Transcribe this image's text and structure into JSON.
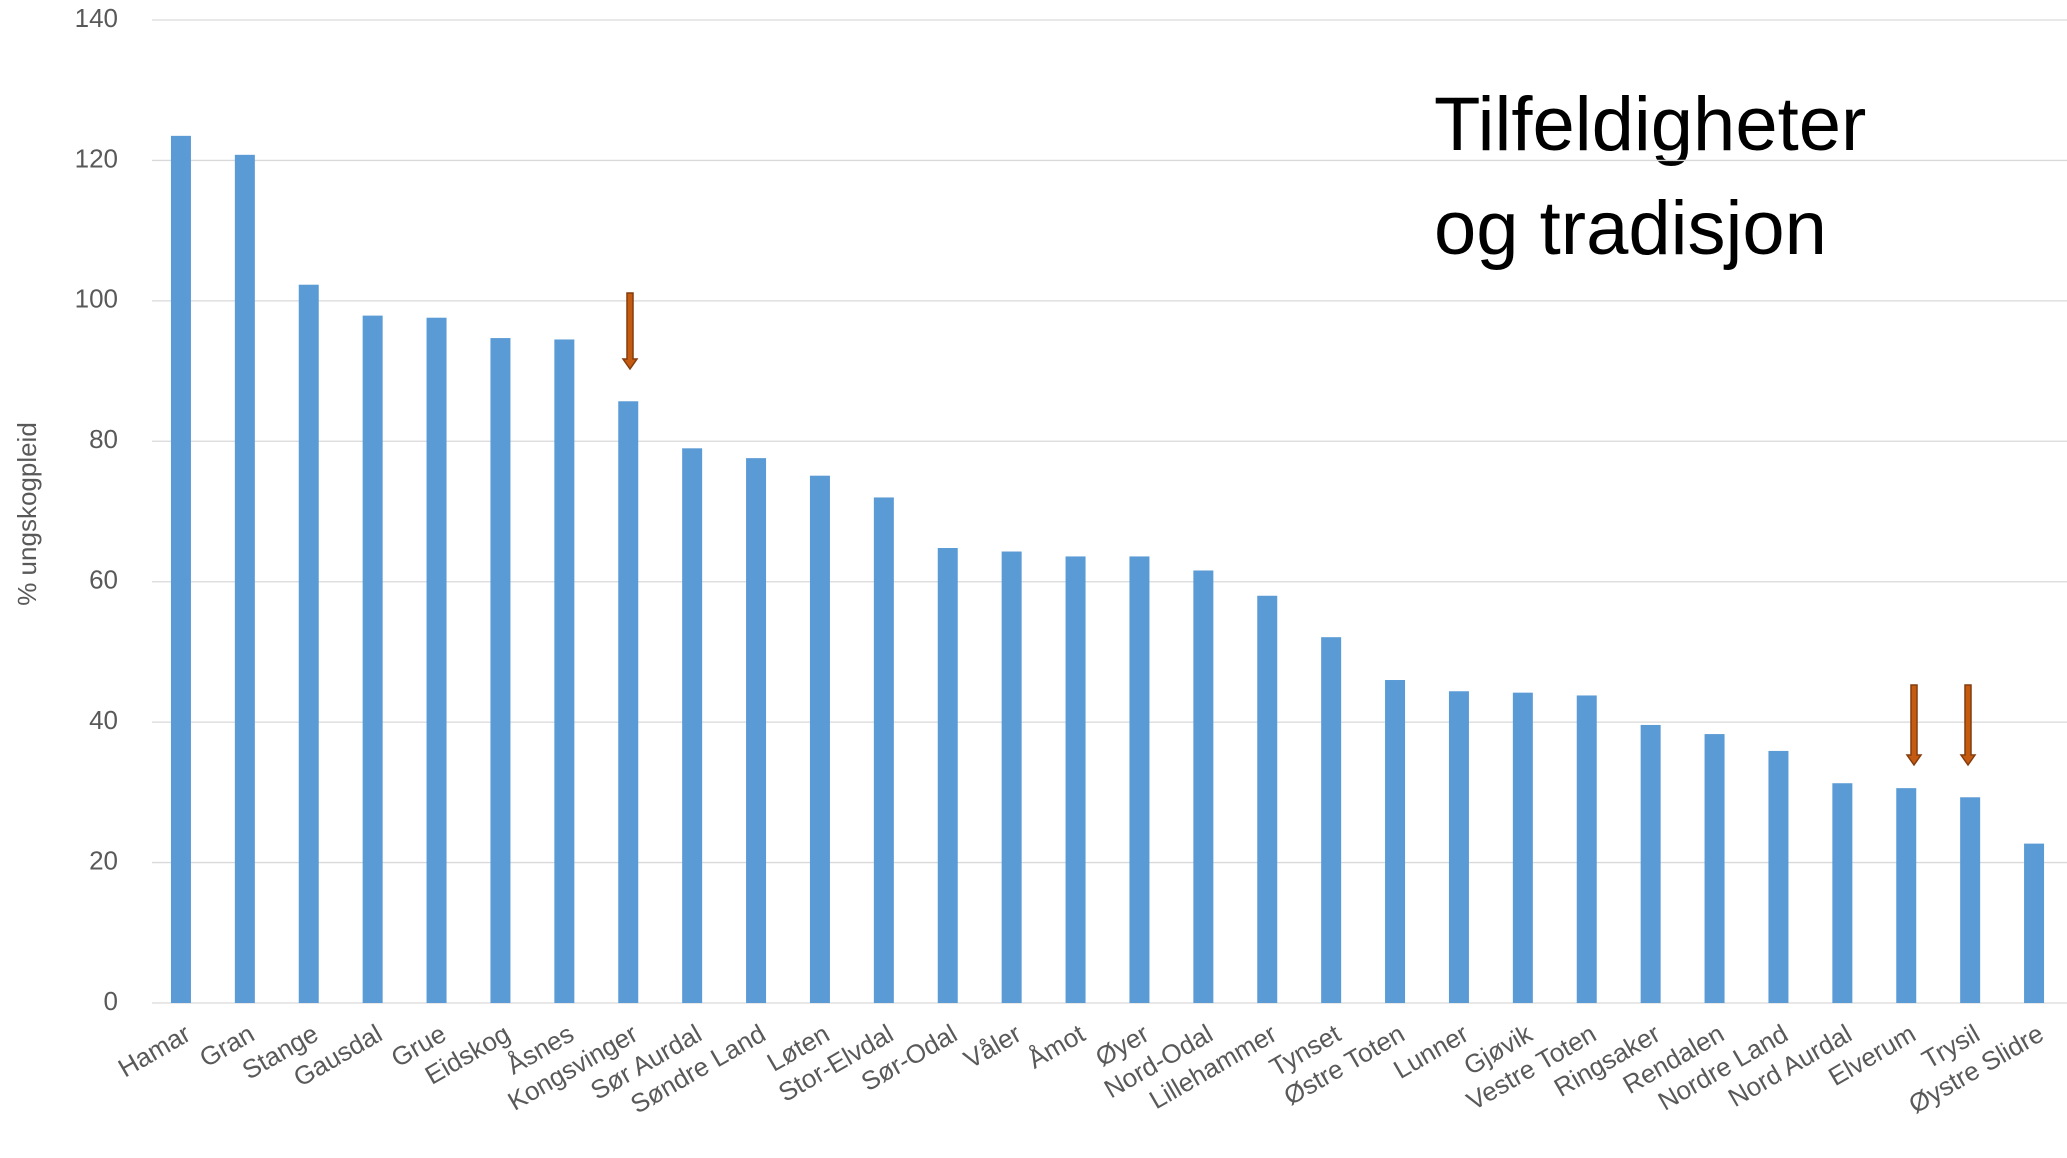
{
  "chart_data": {
    "type": "bar",
    "annotation_lines": [
      "Tilfeldigheter",
      "og tradisjon"
    ],
    "y_label": "% ungskogpleid",
    "categories": [
      "Hamar",
      "Gran",
      "Stange",
      "Gausdal",
      "Grue",
      "Eidskog",
      "Åsnes",
      "Kongsvinger",
      "Sør Aurdal",
      "Søndre Land",
      "Løten",
      "Stor-Elvdal",
      "Sør-Odal",
      "Våler",
      "Åmot",
      "Øyer",
      "Nord-Odal",
      "Lillehammer",
      "Tynset",
      "Østre Toten",
      "Lunner",
      "Gjøvik",
      "Vestre Toten",
      "Ringsaker",
      "Rendalen",
      "Nordre Land",
      "Nord Aurdal",
      "Elverum",
      "Trysil",
      "Øystre Slidre"
    ],
    "values": [
      123.5,
      120.8,
      102.3,
      97.9,
      97.6,
      94.7,
      94.5,
      85.7,
      79,
      77.6,
      75.1,
      72,
      64.8,
      64.3,
      63.6,
      63.6,
      61.6,
      58,
      52.1,
      46,
      44.4,
      44.2,
      43.8,
      39.6,
      38.3,
      35.9,
      31.3,
      30.6,
      29.3,
      22.7
    ],
    "color": "#5b9bd5",
    "ylim": [
      0,
      140
    ],
    "yticks": [
      0,
      20,
      40,
      60,
      80,
      100,
      120,
      140
    ],
    "grid": true
  }
}
